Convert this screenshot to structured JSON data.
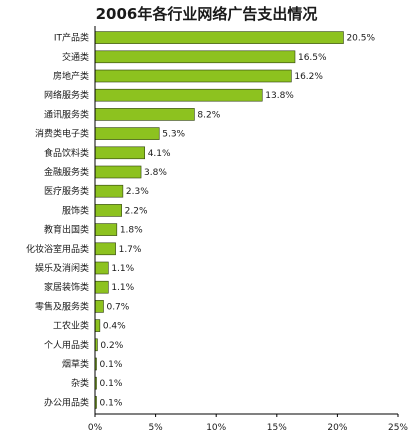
{
  "chart_data": {
    "type": "bar",
    "orientation": "horizontal",
    "title": "2006年各行业网络广告支出情况",
    "categories": [
      "IT产品类",
      "交通类",
      "房地产类",
      "网络服务类",
      "通讯服务类",
      "消费类电子类",
      "食品饮料类",
      "金融服务类",
      "医疗服务类",
      "服饰类",
      "教育出国类",
      "化妆浴室用品类",
      "娱乐及消闲类",
      "家居装饰类",
      "零售及服务类",
      "工农业类",
      "个人用品类",
      "烟草类",
      "杂类",
      "办公用品类"
    ],
    "values": [
      20.5,
      16.5,
      16.2,
      13.8,
      8.2,
      5.3,
      4.1,
      3.8,
      2.3,
      2.2,
      1.8,
      1.7,
      1.1,
      1.1,
      0.7,
      0.4,
      0.2,
      0.1,
      0.1,
      0.1
    ],
    "value_labels": [
      "20.5%",
      "16.5%",
      "16.2%",
      "13.8%",
      "8.2%",
      "5.3%",
      "4.1%",
      "3.8%",
      "2.3%",
      "2.2%",
      "1.8%",
      "1.7%",
      "1.1%",
      "1.1%",
      "0.7%",
      "0.4%",
      "0.2%",
      "0.1%",
      "0.1%",
      "0.1%"
    ],
    "x_ticks": [
      "0%",
      "5%",
      "10%",
      "15%",
      "20%",
      "25%"
    ],
    "xlim": [
      0,
      25
    ],
    "xlabel": "",
    "ylabel": "",
    "grid": false,
    "legend": "none",
    "bar_color": "#8dc21f",
    "bar_edge_color": "#2f3f10"
  }
}
